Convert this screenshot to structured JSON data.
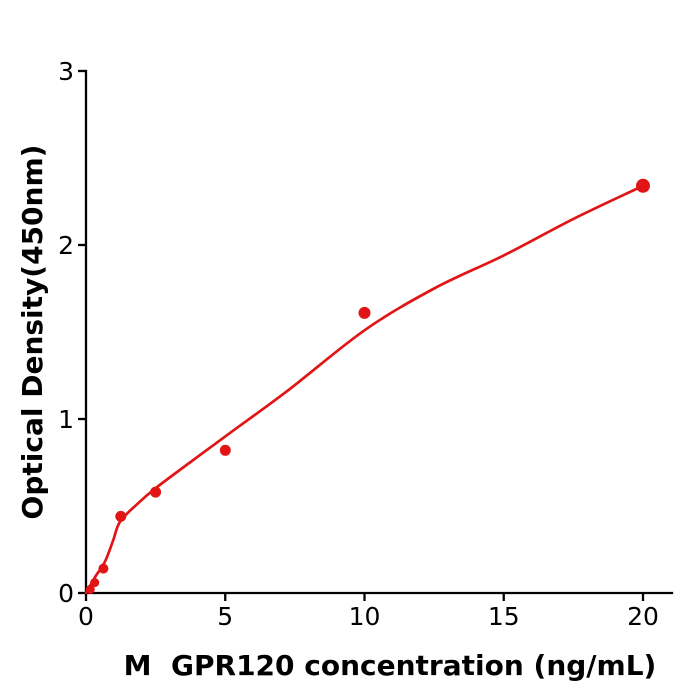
{
  "figure": {
    "background": "#ffffff"
  },
  "chart_data": {
    "type": "scatter",
    "title": "",
    "xlabel": "M  GPR120 concentration (ng/mL)",
    "ylabel": "Optical Density(450nm)",
    "x_values": [
      0.156,
      0.3125,
      0.625,
      1.25,
      2.5,
      5,
      10,
      20
    ],
    "y_values": [
      0.02,
      0.06,
      0.14,
      0.44,
      0.58,
      0.82,
      1.61,
      2.34
    ],
    "fit_curve": [
      [
        0,
        0.0
      ],
      [
        0.32,
        0.09
      ],
      [
        0.68,
        0.18
      ],
      [
        0.97,
        0.3
      ],
      [
        1.22,
        0.41
      ],
      [
        1.83,
        0.51
      ],
      [
        2.48,
        0.6
      ],
      [
        3.73,
        0.75
      ],
      [
        5,
        0.9
      ],
      [
        7.3,
        1.17
      ],
      [
        10,
        1.51
      ],
      [
        12.5,
        1.75
      ],
      [
        15,
        1.94
      ],
      [
        17.5,
        2.15
      ],
      [
        20,
        2.34
      ]
    ],
    "xticks": [
      0,
      5,
      10,
      15,
      20
    ],
    "yticks": [
      0,
      1,
      2,
      3
    ],
    "xlim": [
      0,
      21
    ],
    "ylim": [
      0,
      3
    ],
    "grid": false,
    "legend": null,
    "colors": {
      "points": "#e11515",
      "fit_line": "#e11515",
      "axis": "#000000",
      "text": "#000000"
    }
  }
}
